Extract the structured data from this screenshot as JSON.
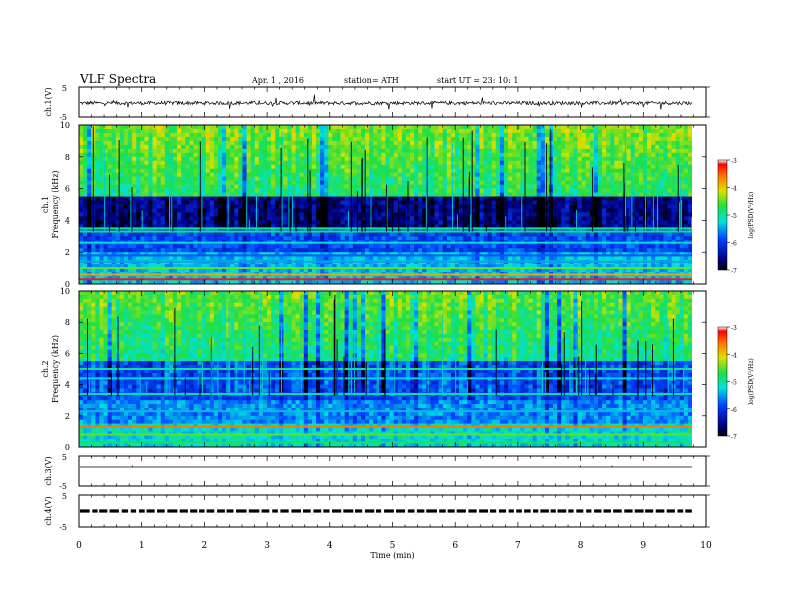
{
  "header": {
    "title": "VLF  Spectra",
    "date": "Apr. 1  , 2016",
    "station": "station= ATH",
    "start": "start  UT  =   23: 10: 1"
  },
  "colors": {
    "spectrogram_low": "#000088",
    "spectrogram_mid": "#00e0e0",
    "spectrogram_high": "#ff0000",
    "trace": "#000000",
    "axis": "#000000"
  },
  "chart_data": [
    {
      "type": "line",
      "panel": "ch1-waveform",
      "ylabel": "ch.1(V)",
      "ylim": [
        -5,
        5
      ],
      "yticks": [
        "5",
        "-5"
      ],
      "xlim": [
        0,
        10
      ],
      "description_values": {
        "baseline_v": 0,
        "typical_amplitude_v": 0.6,
        "spike_amplitude_v": 2.5
      }
    },
    {
      "type": "heatmap",
      "panel": "ch1-spectrogram",
      "ylabel": "ch.1\nFrequency  (kHz)",
      "ylabel_lines": [
        "ch.1",
        "Frequency  (kHz)"
      ],
      "ylim": [
        0,
        10
      ],
      "yticks": [
        "0",
        "2",
        "4",
        "6",
        "8",
        "10"
      ],
      "xlim": [
        0,
        10
      ],
      "bands_khz": [
        {
          "f": 0.3,
          "level": -3.2
        },
        {
          "f": 0.6,
          "level": -3.8
        },
        {
          "f": 1.0,
          "level": -4.5
        },
        {
          "f": 1.4,
          "level": -5.5
        },
        {
          "f": 1.8,
          "level": -5.8
        },
        {
          "f": 2.6,
          "level": -5.2
        },
        {
          "f": 3.3,
          "level": -4.9
        },
        {
          "f": 3.5,
          "level": -5.0
        }
      ],
      "colorbar": {
        "range": [
          -7,
          -3
        ],
        "ticks": [
          "-3",
          "-4",
          "-5",
          "-6",
          "-7"
        ],
        "label": "log(PSD(V²/Hz)"
      }
    },
    {
      "type": "heatmap",
      "panel": "ch2-spectrogram",
      "ylabel": "ch.2\nFrequency  (kHz)",
      "ylabel_lines": [
        "ch.2",
        "Frequency  (kHz)"
      ],
      "ylim": [
        0,
        10
      ],
      "yticks": [
        "0",
        "2",
        "4",
        "6",
        "8",
        "10"
      ],
      "xlim": [
        0,
        10
      ],
      "bands_khz": [
        {
          "f": 0.3,
          "level": -4.8
        },
        {
          "f": 0.8,
          "level": -4.5
        },
        {
          "f": 1.3,
          "level": -3.6
        },
        {
          "f": 2.3,
          "level": -5.4
        },
        {
          "f": 3.4,
          "level": -5.1
        },
        {
          "f": 4.4,
          "level": -5.3
        },
        {
          "f": 5.0,
          "level": -5.0
        }
      ],
      "colorbar": {
        "range": [
          -7,
          -3
        ],
        "ticks": [
          "-3",
          "-4",
          "-5",
          "-6",
          "-7"
        ],
        "label": "log(PSD(V²/Hz)"
      }
    },
    {
      "type": "line",
      "panel": "ch3-waveform",
      "ylabel": "ch.3(V)",
      "ylim": [
        -5,
        5
      ],
      "yticks": [
        "5",
        "-5"
      ],
      "xlim": [
        0,
        10
      ],
      "description_values": {
        "baseline_v": 0
      }
    },
    {
      "type": "line",
      "panel": "ch4-waveform",
      "ylabel": "ch.4(V)",
      "ylim": [
        -5,
        5
      ],
      "yticks": [
        "5",
        "-5"
      ],
      "xlim": [
        0,
        10
      ],
      "xlabel": "Time  (min)",
      "xticks": [
        "0",
        "1",
        "2",
        "3",
        "4",
        "5",
        "6",
        "7",
        "8",
        "9",
        "10"
      ],
      "description_values": {
        "baseline_v": 0,
        "pulse_pattern": "dashed"
      }
    }
  ]
}
